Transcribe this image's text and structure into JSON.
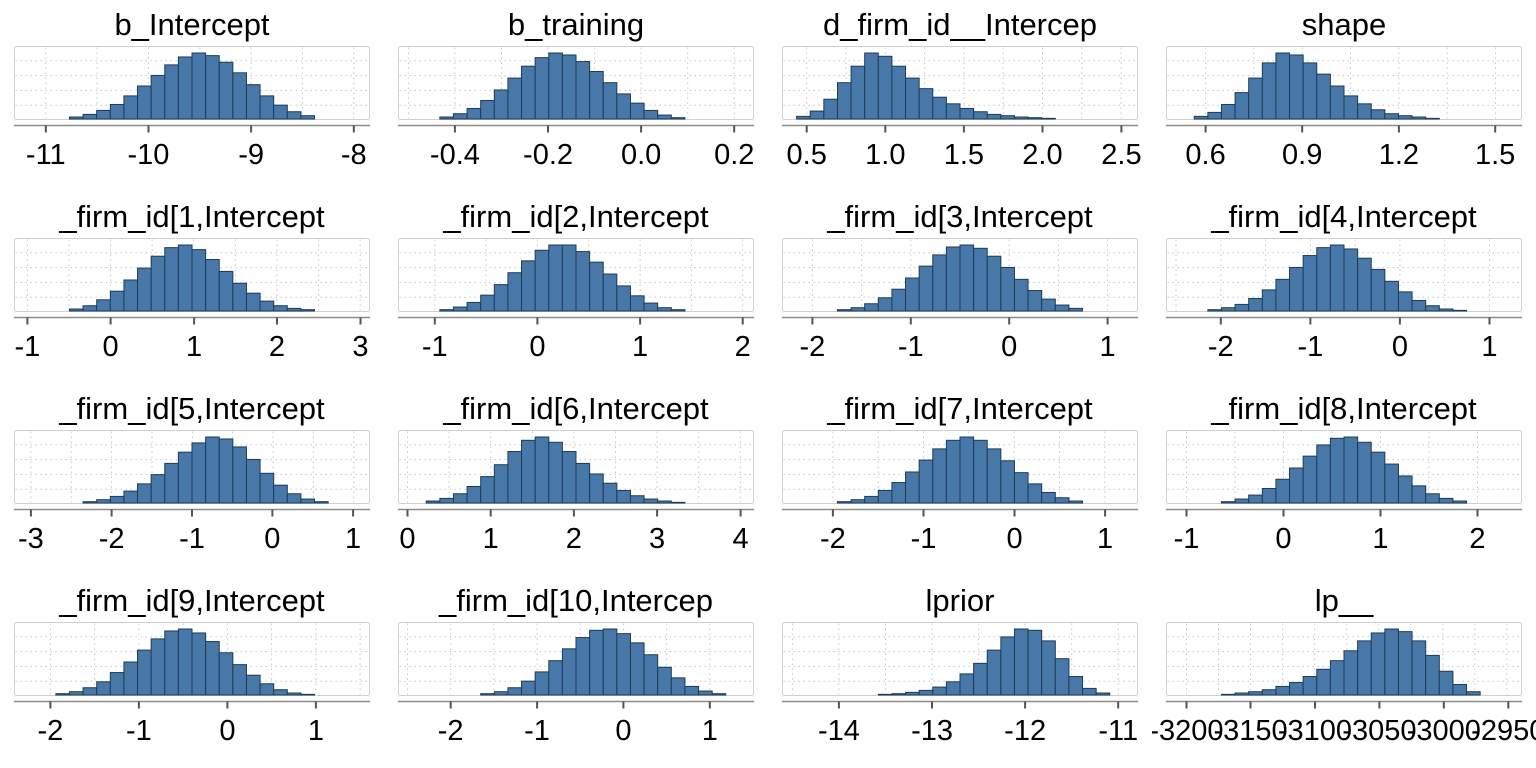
{
  "figure": {
    "kind": "posterior-histogram-grid",
    "rows": 4,
    "cols": 4
  },
  "colors": {
    "bar_fill": "#4878a8",
    "bar_stroke": "#1d3c59",
    "grid_line": "#c6c6c6",
    "panel_border": "#cfcfcf",
    "panel_bg": "#ffffff",
    "axis_line": "#8c8c8c",
    "tick_mark": "#555555",
    "text": "#000000"
  },
  "chart_data": [
    {
      "type": "histogram",
      "title": "b_Intercept",
      "x_ticks": [
        {
          "label": "-11",
          "pos": 0.087
        },
        {
          "label": "-10",
          "pos": 0.377
        },
        {
          "label": "-9",
          "pos": 0.667
        },
        {
          "label": "-8",
          "pos": 0.957
        }
      ],
      "heights": [
        0,
        0,
        0,
        0,
        0.03,
        0.07,
        0.13,
        0.22,
        0.35,
        0.5,
        0.66,
        0.82,
        0.94,
        1,
        0.96,
        0.86,
        0.7,
        0.52,
        0.35,
        0.21,
        0.11,
        0.05,
        0,
        0,
        0,
        0
      ]
    },
    {
      "type": "histogram",
      "title": "b_training",
      "x_ticks": [
        {
          "label": "-0.4",
          "pos": 0.158
        },
        {
          "label": "-0.2",
          "pos": 0.421
        },
        {
          "label": "0.0",
          "pos": 0.684
        },
        {
          "label": "0.2",
          "pos": 0.947
        }
      ],
      "heights": [
        0,
        0,
        0,
        0.03,
        0.08,
        0.16,
        0.28,
        0.44,
        0.62,
        0.8,
        0.93,
        1,
        0.97,
        0.87,
        0.72,
        0.55,
        0.38,
        0.24,
        0.13,
        0.06,
        0.02,
        0,
        0,
        0,
        0,
        0
      ]
    },
    {
      "type": "histogram",
      "title": "d_firm_id__Intercep",
      "x_ticks": [
        {
          "label": "0.5",
          "pos": 0.067
        },
        {
          "label": "1.0",
          "pos": 0.289
        },
        {
          "label": "1.5",
          "pos": 0.511
        },
        {
          "label": "2.0",
          "pos": 0.733
        },
        {
          "label": "2.5",
          "pos": 0.956
        }
      ],
      "heights": [
        0,
        0.04,
        0.12,
        0.3,
        0.55,
        0.8,
        1,
        0.95,
        0.8,
        0.62,
        0.46,
        0.33,
        0.23,
        0.16,
        0.11,
        0.07,
        0.05,
        0.03,
        0.02,
        0.01,
        0,
        0,
        0,
        0,
        0,
        0
      ]
    },
    {
      "type": "histogram",
      "title": "shape",
      "x_ticks": [
        {
          "label": "0.6",
          "pos": 0.109
        },
        {
          "label": "0.9",
          "pos": 0.382
        },
        {
          "label": "1.2",
          "pos": 0.655
        },
        {
          "label": "1.5",
          "pos": 0.927
        }
      ],
      "heights": [
        0,
        0,
        0.04,
        0.1,
        0.22,
        0.4,
        0.62,
        0.85,
        1,
        0.97,
        0.85,
        0.68,
        0.5,
        0.35,
        0.23,
        0.14,
        0.08,
        0.05,
        0.03,
        0.01,
        0,
        0,
        0,
        0,
        0,
        0
      ]
    },
    {
      "type": "histogram",
      "title": "_firm_id[1,Intercept",
      "x_ticks": [
        {
          "label": "-1",
          "pos": 0.035
        },
        {
          "label": "0",
          "pos": 0.27
        },
        {
          "label": "1",
          "pos": 0.506
        },
        {
          "label": "2",
          "pos": 0.74
        },
        {
          "label": "3",
          "pos": 0.976
        }
      ],
      "heights": [
        0,
        0,
        0,
        0,
        0.03,
        0.08,
        0.17,
        0.3,
        0.47,
        0.65,
        0.83,
        0.96,
        1,
        0.93,
        0.78,
        0.6,
        0.42,
        0.27,
        0.15,
        0.08,
        0.04,
        0.02,
        0,
        0,
        0,
        0
      ]
    },
    {
      "type": "histogram",
      "title": "_firm_id[2,Intercept",
      "x_ticks": [
        {
          "label": "-1",
          "pos": 0.101
        },
        {
          "label": "0",
          "pos": 0.391
        },
        {
          "label": "1",
          "pos": 0.681
        },
        {
          "label": "2",
          "pos": 0.971
        }
      ],
      "heights": [
        0,
        0,
        0,
        0.02,
        0.06,
        0.13,
        0.24,
        0.4,
        0.58,
        0.76,
        0.92,
        1,
        1,
        0.9,
        0.74,
        0.56,
        0.38,
        0.23,
        0.12,
        0.05,
        0.02,
        0,
        0,
        0,
        0,
        0
      ]
    },
    {
      "type": "histogram",
      "title": "_firm_id[3,Intercept",
      "x_ticks": [
        {
          "label": "-2",
          "pos": 0.083
        },
        {
          "label": "-1",
          "pos": 0.361
        },
        {
          "label": "0",
          "pos": 0.639
        },
        {
          "label": "1",
          "pos": 0.917
        }
      ],
      "heights": [
        0,
        0,
        0,
        0,
        0.02,
        0.05,
        0.11,
        0.2,
        0.33,
        0.5,
        0.68,
        0.85,
        0.97,
        1,
        0.95,
        0.83,
        0.66,
        0.48,
        0.31,
        0.18,
        0.09,
        0.04,
        0,
        0,
        0,
        0
      ]
    },
    {
      "type": "histogram",
      "title": "_firm_id[4,Intercept",
      "x_ticks": [
        {
          "label": "-2",
          "pos": 0.152
        },
        {
          "label": "-1",
          "pos": 0.405
        },
        {
          "label": "0",
          "pos": 0.658
        },
        {
          "label": "1",
          "pos": 0.911
        }
      ],
      "heights": [
        0,
        0,
        0,
        0.02,
        0.05,
        0.1,
        0.19,
        0.32,
        0.48,
        0.66,
        0.84,
        0.96,
        1,
        0.94,
        0.8,
        0.63,
        0.45,
        0.29,
        0.16,
        0.08,
        0.03,
        0.01,
        0,
        0,
        0,
        0
      ]
    },
    {
      "type": "histogram",
      "title": "_firm_id[5,Intercept",
      "x_ticks": [
        {
          "label": "-3",
          "pos": 0.045
        },
        {
          "label": "-2",
          "pos": 0.273
        },
        {
          "label": "-1",
          "pos": 0.5
        },
        {
          "label": "0",
          "pos": 0.727
        },
        {
          "label": "1",
          "pos": 0.955
        }
      ],
      "heights": [
        0,
        0,
        0,
        0,
        0,
        0.02,
        0.05,
        0.1,
        0.18,
        0.29,
        0.43,
        0.6,
        0.77,
        0.91,
        1,
        0.97,
        0.85,
        0.66,
        0.45,
        0.27,
        0.14,
        0.06,
        0.02,
        0,
        0,
        0
      ]
    },
    {
      "type": "histogram",
      "title": "_firm_id[6,Intercept",
      "x_ticks": [
        {
          "label": "0",
          "pos": 0.024
        },
        {
          "label": "1",
          "pos": 0.259
        },
        {
          "label": "2",
          "pos": 0.494
        },
        {
          "label": "3",
          "pos": 0.729
        },
        {
          "label": "4",
          "pos": 0.965
        }
      ],
      "heights": [
        0,
        0,
        0.03,
        0.07,
        0.14,
        0.25,
        0.4,
        0.58,
        0.78,
        0.95,
        1,
        0.92,
        0.78,
        0.6,
        0.44,
        0.3,
        0.19,
        0.11,
        0.06,
        0.03,
        0.01,
        0,
        0,
        0,
        0,
        0
      ]
    },
    {
      "type": "histogram",
      "title": "_firm_id[7,Intercept",
      "x_ticks": [
        {
          "label": "-2",
          "pos": 0.141
        },
        {
          "label": "-1",
          "pos": 0.397
        },
        {
          "label": "0",
          "pos": 0.654
        },
        {
          "label": "1",
          "pos": 0.91
        }
      ],
      "heights": [
        0,
        0,
        0,
        0,
        0.02,
        0.05,
        0.1,
        0.19,
        0.31,
        0.47,
        0.65,
        0.82,
        0.95,
        1,
        0.95,
        0.82,
        0.64,
        0.46,
        0.29,
        0.16,
        0.08,
        0.03,
        0,
        0,
        0,
        0
      ]
    },
    {
      "type": "histogram",
      "title": "_firm_id[8,Intercept",
      "x_ticks": [
        {
          "label": "-1",
          "pos": 0.055
        },
        {
          "label": "0",
          "pos": 0.329
        },
        {
          "label": "1",
          "pos": 0.603
        },
        {
          "label": "2",
          "pos": 0.877
        }
      ],
      "heights": [
        0,
        0,
        0,
        0,
        0.02,
        0.06,
        0.12,
        0.22,
        0.36,
        0.53,
        0.71,
        0.88,
        0.98,
        1,
        0.92,
        0.77,
        0.59,
        0.41,
        0.26,
        0.14,
        0.07,
        0.03,
        0,
        0,
        0,
        0
      ]
    },
    {
      "type": "histogram",
      "title": "_firm_id[9,Intercept",
      "x_ticks": [
        {
          "label": "-2",
          "pos": 0.1
        },
        {
          "label": "-1",
          "pos": 0.35
        },
        {
          "label": "0",
          "pos": 0.6
        },
        {
          "label": "1",
          "pos": 0.85
        }
      ],
      "heights": [
        0,
        0,
        0,
        0.02,
        0.05,
        0.11,
        0.2,
        0.34,
        0.5,
        0.68,
        0.85,
        0.97,
        1,
        0.94,
        0.81,
        0.64,
        0.46,
        0.3,
        0.17,
        0.08,
        0.03,
        0.01,
        0,
        0,
        0,
        0
      ]
    },
    {
      "type": "histogram",
      "title": "_firm_id[10,Intercep",
      "x_ticks": [
        {
          "label": "-2",
          "pos": 0.146
        },
        {
          "label": "-1",
          "pos": 0.39
        },
        {
          "label": "0",
          "pos": 0.634
        },
        {
          "label": "1",
          "pos": 0.878
        }
      ],
      "heights": [
        0,
        0,
        0,
        0,
        0,
        0,
        0.02,
        0.05,
        0.11,
        0.21,
        0.35,
        0.52,
        0.7,
        0.87,
        0.98,
        1,
        0.93,
        0.79,
        0.61,
        0.42,
        0.26,
        0.13,
        0.06,
        0.02,
        0,
        0
      ]
    },
    {
      "type": "histogram",
      "title": "lprior",
      "x_ticks": [
        {
          "label": "-14",
          "pos": 0.158
        },
        {
          "label": "-13",
          "pos": 0.421
        },
        {
          "label": "-12",
          "pos": 0.684
        },
        {
          "label": "-11",
          "pos": 0.947
        }
      ],
      "heights": [
        0,
        0,
        0,
        0,
        0,
        0,
        0,
        0.01,
        0.02,
        0.04,
        0.07,
        0.12,
        0.2,
        0.32,
        0.48,
        0.68,
        0.88,
        1,
        0.98,
        0.82,
        0.55,
        0.28,
        0.1,
        0.03,
        0,
        0
      ]
    },
    {
      "type": "histogram",
      "title": "lp__",
      "x_ticks": [
        {
          "label": "-3200",
          "pos": 0.055
        },
        {
          "label": "-3150",
          "pos": 0.236
        },
        {
          "label": "-3100",
          "pos": 0.418
        },
        {
          "label": "-3050",
          "pos": 0.6
        },
        {
          "label": "-3000",
          "pos": 0.782
        },
        {
          "label": "-2950",
          "pos": 0.964
        }
      ],
      "heights": [
        0,
        0,
        0,
        0,
        0.01,
        0.03,
        0.05,
        0.08,
        0.13,
        0.19,
        0.28,
        0.39,
        0.52,
        0.67,
        0.82,
        0.94,
        1,
        0.96,
        0.82,
        0.6,
        0.36,
        0.16,
        0.05,
        0,
        0,
        0
      ]
    }
  ]
}
